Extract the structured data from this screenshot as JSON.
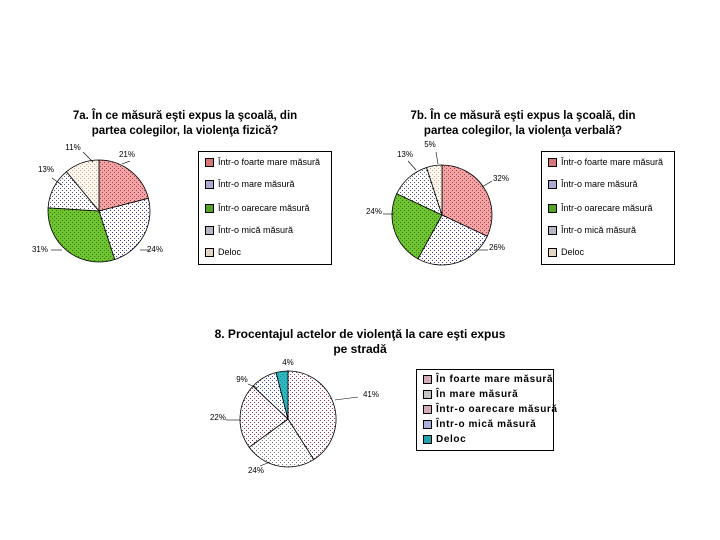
{
  "patterns": {
    "p0": {
      "bg": "#f2a5a6",
      "fg": "#b03a3a"
    },
    "p1": {
      "bg": "#ffffff",
      "fg": "#3a3a9a"
    },
    "p2": {
      "bg": "#6fc42f",
      "fg": "#2e7a10"
    },
    "p3": {
      "bg": "#ffffff",
      "fg": "#555577"
    },
    "p4": {
      "bg": "#fdf7ef",
      "fg": "#c0a888"
    },
    "p5": {
      "bg": "#a8d0d8",
      "fg": "#2e6f80"
    },
    "p6": {
      "bg": "#e8e8e8",
      "fg": "#8a8aaa"
    },
    "p7": {
      "bg": "#ffffff",
      "fg": "#9a3a5a"
    },
    "p8": {
      "bg": "#ffffff",
      "fg": "#7a7a7a"
    },
    "p9": {
      "bg": "#ffffff",
      "fg": "#3a4aa8"
    },
    "p10": {
      "bg": "#bde0e6",
      "fg": "#3a8aa0"
    },
    "p11": {
      "bg": "#30b8c0",
      "fg": "#108890"
    }
  },
  "chart_data": [
    {
      "type": "pie",
      "title_lines": [
        "7a. În ce măsură eşti expus la şcoală, din",
        "partea colegilor, la violenţa fizică?"
      ],
      "labels": [
        "Într-o foarte mare măsură",
        "Într-o mare măsură",
        "Într-o oarecare măsură",
        "Într-o mică măsură",
        "Deloc"
      ],
      "values": [
        21,
        24,
        31,
        13,
        11
      ],
      "value_labels": [
        "21%",
        "24%",
        "31%",
        "13%",
        "11%"
      ],
      "patterns": [
        "p0",
        "p1",
        "p2",
        "p3",
        "p4"
      ],
      "legend_placement": "right"
    },
    {
      "type": "pie",
      "title_lines": [
        "7b. În ce măsură eşti expus la şcoală, din",
        "partea colegilor, la violenţa verbală?"
      ],
      "labels": [
        "Într-o foarte mare măsură",
        "Într-o mare măsură",
        "Într-o oarecare măsură",
        "Într-o mică măsură",
        "Deloc"
      ],
      "values": [
        32,
        26,
        24,
        13,
        5
      ],
      "value_labels": [
        "32%",
        "26%",
        "24%",
        "13%",
        "5%"
      ],
      "patterns": [
        "p0",
        "p1",
        "p2",
        "p3",
        "p4"
      ],
      "legend_placement": "right"
    },
    {
      "type": "pie",
      "title_lines": [
        "8. Procentajul actelor de violenţă la care eşti expus",
        "pe stradă"
      ],
      "labels": [
        "În foarte mare măsură",
        "În mare măsură",
        "Într-o oarecare măsură",
        "Într-o mică măsură",
        "Deloc"
      ],
      "values": [
        41,
        24,
        22,
        9,
        4
      ],
      "value_labels": [
        "41%",
        "24%",
        "22%",
        "9%",
        "4%"
      ],
      "patterns": [
        "p7",
        "p8",
        "p7",
        "p9",
        "p11"
      ],
      "legend_placement": "right"
    }
  ]
}
